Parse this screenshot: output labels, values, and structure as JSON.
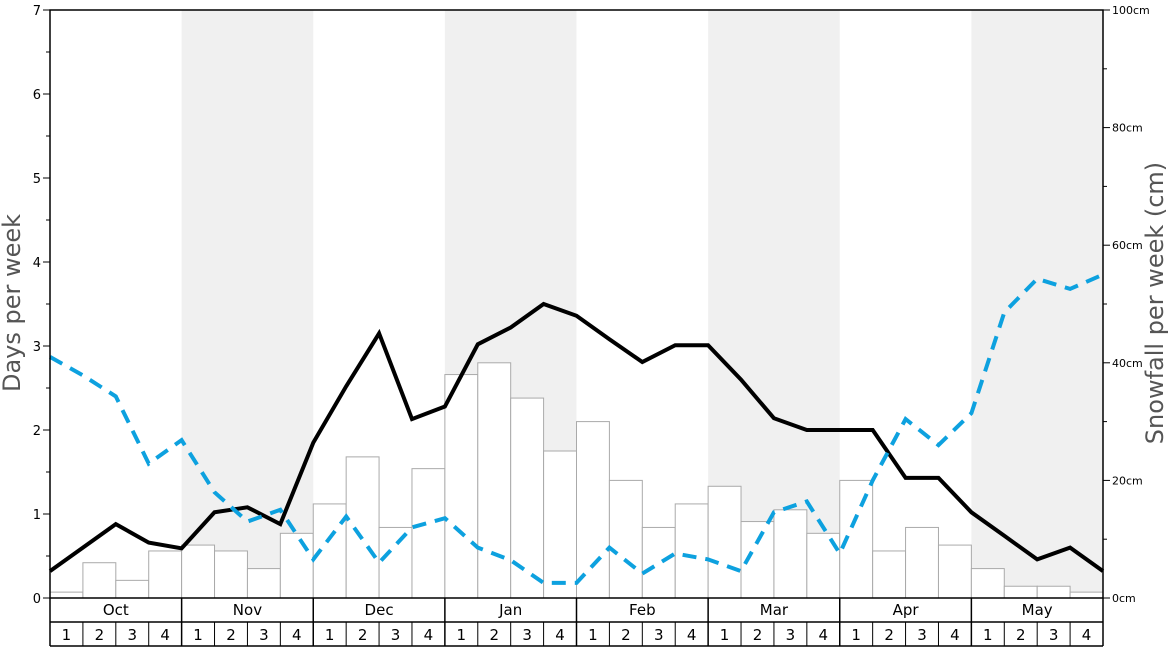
{
  "chart_data": {
    "type": "bar",
    "ylabel": "Days per week",
    "y2label": "Snowfall per week (cm)",
    "ylim": [
      0,
      7
    ],
    "y2lim": [
      0,
      100
    ],
    "y_ticks": [
      "0",
      "1",
      "2",
      "3",
      "4",
      "5",
      "6",
      "7"
    ],
    "y2_ticks": [
      "0cm",
      "20cm",
      "40cm",
      "60cm",
      "80cm",
      "100cm"
    ],
    "months": [
      "Oct",
      "Nov",
      "Dec",
      "Jan",
      "Feb",
      "Mar",
      "Apr",
      "May"
    ],
    "week_labels": [
      "1",
      "2",
      "3",
      "4"
    ],
    "shaded_months": [
      "Nov",
      "Jan",
      "Mar",
      "May"
    ],
    "colors": {
      "bars_fill": "#ffffff",
      "bars_stroke": "#aaaaaa",
      "days_line": "#000000",
      "dashed_line": "#0da1df",
      "shade": "#f0f0f0"
    },
    "series": [
      {
        "type": "bar",
        "axis": "right",
        "values": [
          1.0,
          6.0,
          3.0,
          8.0,
          9.0,
          8.0,
          5.0,
          11.0,
          16.0,
          24.0,
          12.0,
          22.0,
          38.0,
          40.0,
          34.0,
          25.0,
          30.0,
          20.0,
          12.0,
          16.0,
          19.0,
          13.0,
          15.0,
          11.0,
          20.0,
          8.0,
          12.0,
          9.0,
          5.0,
          2.0,
          2.0,
          1.0
        ]
      },
      {
        "type": "line",
        "axis": "left",
        "values": [
          0.32,
          0.6,
          0.88,
          0.66,
          0.59,
          1.02,
          1.08,
          0.88,
          1.85,
          2.52,
          3.15,
          2.13,
          2.28,
          3.02,
          3.22,
          3.5,
          3.36,
          3.08,
          2.81,
          3.01,
          3.01,
          2.6,
          2.14,
          2.0,
          2.0,
          2.0,
          1.43,
          1.43,
          1.02,
          0.74,
          0.46,
          0.6,
          0.32
        ]
      },
      {
        "type": "line",
        "axis": "left",
        "values": [
          2.87,
          2.65,
          2.4,
          1.6,
          1.88,
          1.26,
          0.91,
          1.05,
          0.46,
          0.97,
          0.42,
          0.84,
          0.95,
          0.6,
          0.45,
          0.18,
          0.18,
          0.6,
          0.29,
          0.53,
          0.46,
          0.32,
          1.02,
          1.15,
          0.53,
          1.4,
          2.13,
          1.82,
          2.2,
          3.4,
          3.8,
          3.68,
          3.85
        ]
      }
    ]
  }
}
